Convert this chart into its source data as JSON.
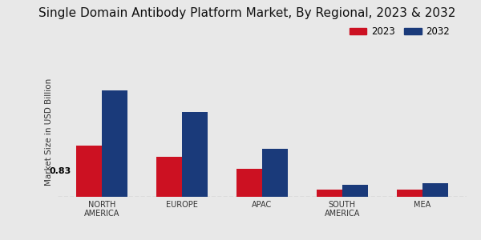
{
  "title": "Single Domain Antibody Platform Market, By Regional, 2023 & 2032",
  "ylabel": "Market Size in USD Billion",
  "categories": [
    "NORTH\nAMERICA",
    "EUROPE",
    "APAC",
    "SOUTH\nAMERICA",
    "MEA"
  ],
  "values_2023": [
    0.83,
    0.65,
    0.45,
    0.12,
    0.12
  ],
  "values_2032": [
    1.72,
    1.38,
    0.78,
    0.2,
    0.22
  ],
  "annotation": "0.83",
  "color_2023": "#cc1122",
  "color_2032": "#1a3a7a",
  "legend_2023": "2023",
  "legend_2032": "2032",
  "background_color": "#e8e8e8",
  "title_fontsize": 11,
  "bar_width": 0.32,
  "ylim": [
    0,
    2.1
  ]
}
